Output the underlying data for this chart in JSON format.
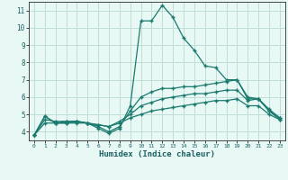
{
  "xlabel": "Humidex (Indice chaleur)",
  "x": [
    0,
    1,
    2,
    3,
    4,
    5,
    6,
    7,
    8,
    9,
    10,
    11,
    12,
    13,
    14,
    15,
    16,
    17,
    18,
    19,
    20,
    21,
    22,
    23
  ],
  "line_max": [
    3.8,
    4.9,
    4.5,
    4.6,
    4.6,
    4.5,
    4.2,
    3.9,
    4.2,
    5.5,
    10.4,
    10.4,
    11.3,
    10.6,
    9.4,
    8.7,
    7.8,
    7.7,
    7.0,
    7.0,
    5.9,
    5.9,
    5.2,
    4.7
  ],
  "line_mid": [
    3.8,
    4.9,
    4.5,
    4.5,
    4.6,
    4.5,
    4.3,
    4.0,
    4.3,
    5.2,
    6.0,
    6.3,
    6.5,
    6.5,
    6.6,
    6.6,
    6.7,
    6.8,
    6.9,
    7.0,
    6.0,
    5.9,
    5.3,
    4.8
  ],
  "line_q3": [
    3.8,
    4.7,
    4.6,
    4.6,
    4.6,
    4.5,
    4.4,
    4.3,
    4.6,
    5.0,
    5.5,
    5.7,
    5.9,
    6.0,
    6.1,
    6.2,
    6.2,
    6.3,
    6.4,
    6.4,
    5.8,
    5.9,
    5.2,
    4.8
  ],
  "line_q1": [
    3.8,
    4.5,
    4.5,
    4.5,
    4.5,
    4.5,
    4.4,
    4.3,
    4.5,
    4.8,
    5.0,
    5.2,
    5.3,
    5.4,
    5.5,
    5.6,
    5.7,
    5.8,
    5.8,
    5.9,
    5.5,
    5.5,
    5.0,
    4.7
  ],
  "line_color": "#1a7a6e",
  "bg_color": "#e8f8f5",
  "grid_color": "#c0ddd8",
  "ylim": [
    3.5,
    11.5
  ],
  "xlim": [
    -0.5,
    23.5
  ],
  "yticks": [
    4,
    5,
    6,
    7,
    8,
    9,
    10,
    11
  ],
  "xticks": [
    0,
    1,
    2,
    3,
    4,
    5,
    6,
    7,
    8,
    9,
    10,
    11,
    12,
    13,
    14,
    15,
    16,
    17,
    18,
    19,
    20,
    21,
    22,
    23
  ]
}
